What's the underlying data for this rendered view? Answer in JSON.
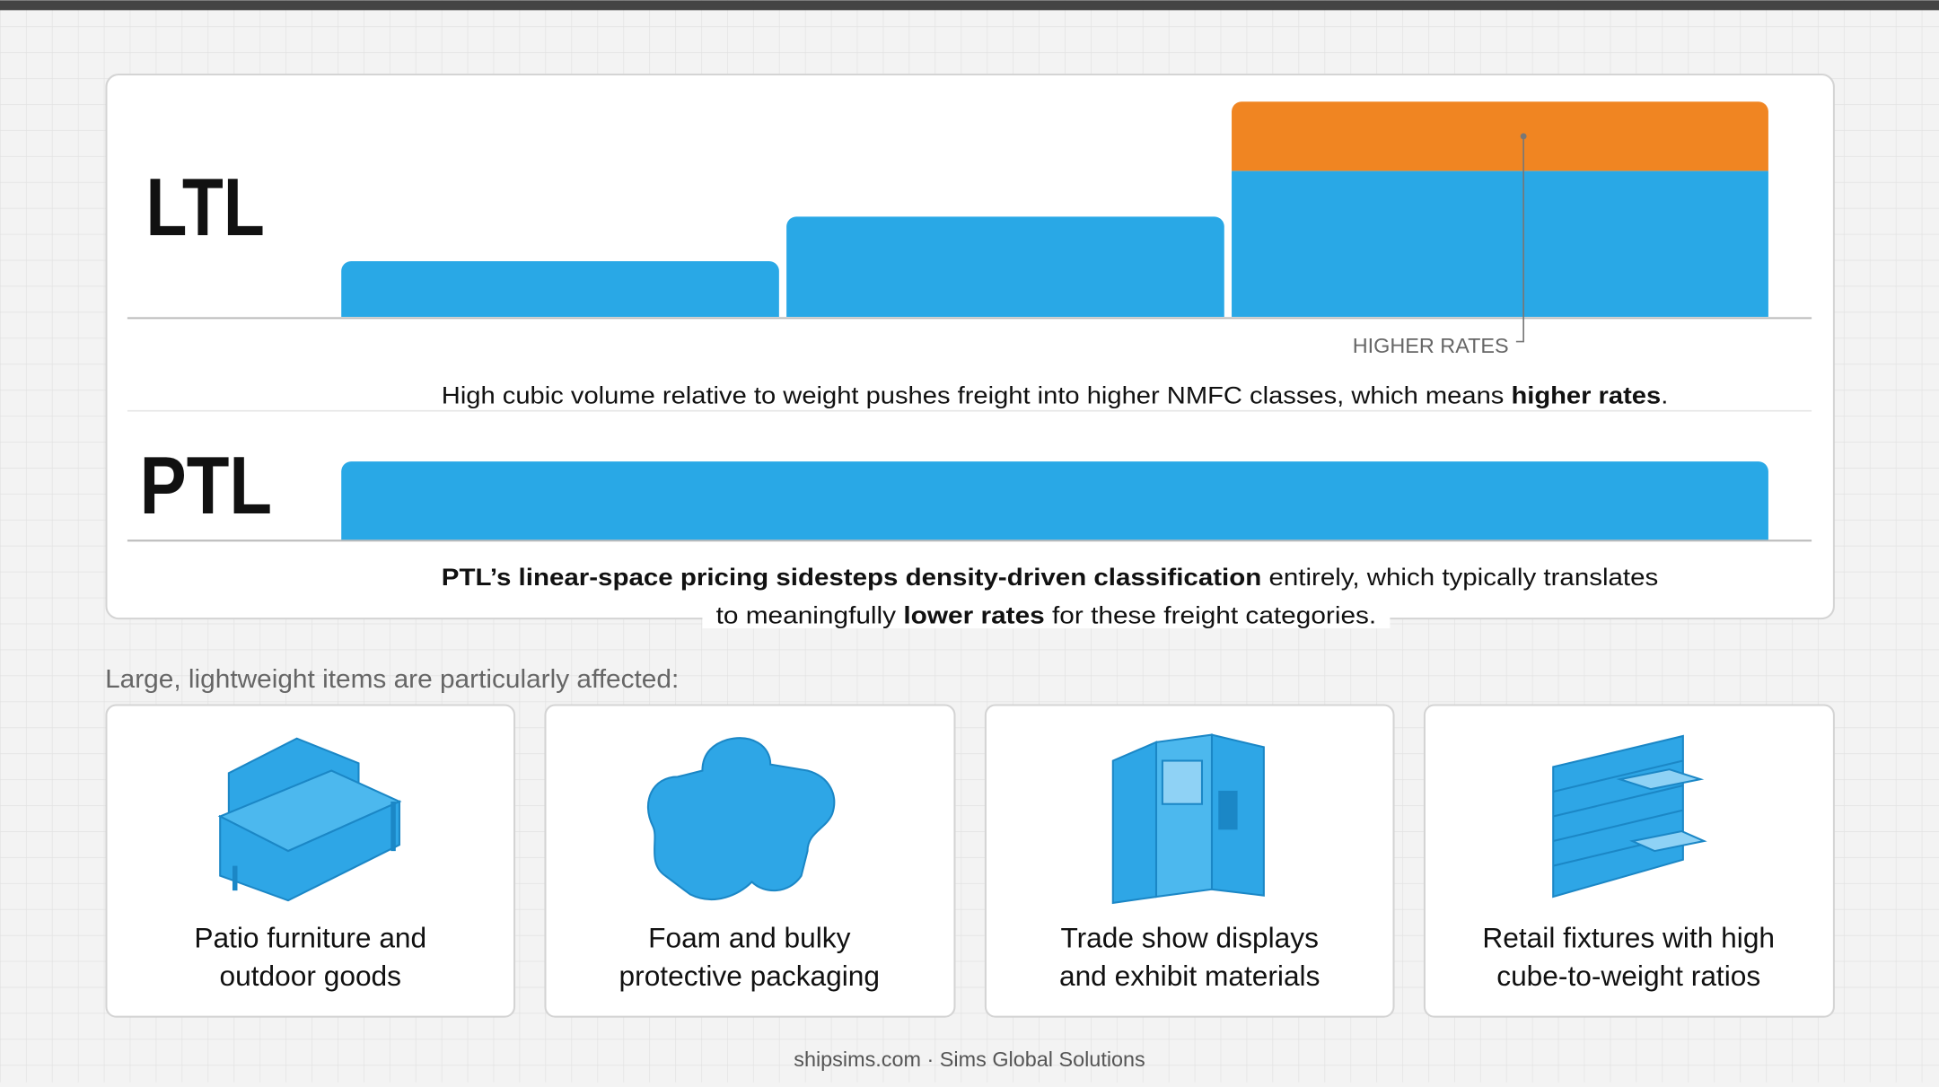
{
  "ltl": {
    "label": "LTL",
    "callout": "HIGHER RATES",
    "caption": [
      "High cubic volume relative to weight pushes freight into higher NMFC classes, which means ",
      "higher rates",
      "."
    ]
  },
  "ptl": {
    "label": "PTL",
    "caption_line1": [
      "PTL’s linear-space pricing sidesteps density-driven classification",
      " entirely, which typically translates"
    ],
    "caption_line2": [
      "to meaningfully ",
      "lower rates",
      " for these freight categories."
    ]
  },
  "section_heading": "Large, lightweight items are particularly affected:",
  "items": [
    {
      "lines": [
        "Patio furniture and",
        "outdoor goods"
      ]
    },
    {
      "lines": [
        "Foam and bulky",
        "protective packaging"
      ]
    },
    {
      "lines": [
        "Trade show displays",
        "and exhibit materials"
      ]
    },
    {
      "lines": [
        "Retail fixtures with high",
        "cube-to-weight ratios"
      ]
    }
  ],
  "footer": "shipsims.com · Sims Global Solutions"
}
